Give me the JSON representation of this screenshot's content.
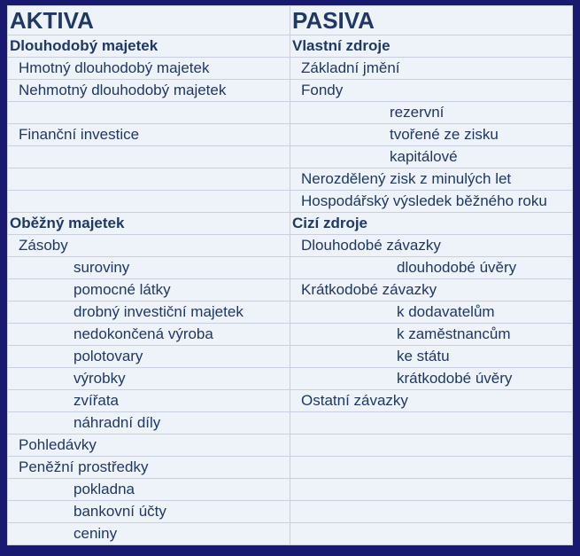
{
  "colors": {
    "page_bg": "#191970",
    "table_bg": "#eef2f9",
    "border": "#c8d0e0",
    "text": "#1f3864"
  },
  "headings": {
    "aktiva": "AKTIVA",
    "pasiva": "PASIVA"
  },
  "left": {
    "sec1": "Dlouhodobý  majetek",
    "l1": "Hmotný  dlouhodobý  majetek",
    "l2": "Nehmotný  dlouhodobý  majetek",
    "l3": "",
    "l4": "Finanční  investice",
    "l5": "",
    "l6": "",
    "l7": "",
    "sec2": "Oběžný  majetek",
    "o1": "Zásoby",
    "o2": "suroviny",
    "o3": "pomocné  látky",
    "o4": "drobný investiční  majetek",
    "o5": "nedokončená  výroba",
    "o6": "polotovary",
    "o7": "výrobky",
    "o8": "zvířata",
    "o9": "náhradní  díly",
    "p1": "Pohledávky",
    "p2": "Peněžní  prostředky",
    "p3": "pokladna",
    "p4": "bankovní  účty",
    "p5": "ceniny"
  },
  "right": {
    "sec1": "Vlastní  zdroje",
    "r1": "Základní  jmění",
    "r2": "Fondy",
    "r3": "rezervní",
    "r4": "tvořené  ze zisku",
    "r5": "kapitálové",
    "r6": "Nerozdělený  zisk z minulých let",
    "r7": "Hospodářský  výsledek  běžného  roku",
    "sec2": "Cizí  zdroje",
    "c1": "Dlouhodobé  závazky",
    "c2": "dlouhodobé  úvěry",
    "c3": "Krátkodobé  závazky",
    "c4": "k dodavatelům",
    "c5": "k zaměstnancům",
    "c6": "ke státu",
    "c7": "krátkodobé  úvěry",
    "c8": "Ostatní  závazky",
    "c9": "",
    "d1": "",
    "d2": "",
    "d3": "",
    "d4": "",
    "d5": ""
  }
}
